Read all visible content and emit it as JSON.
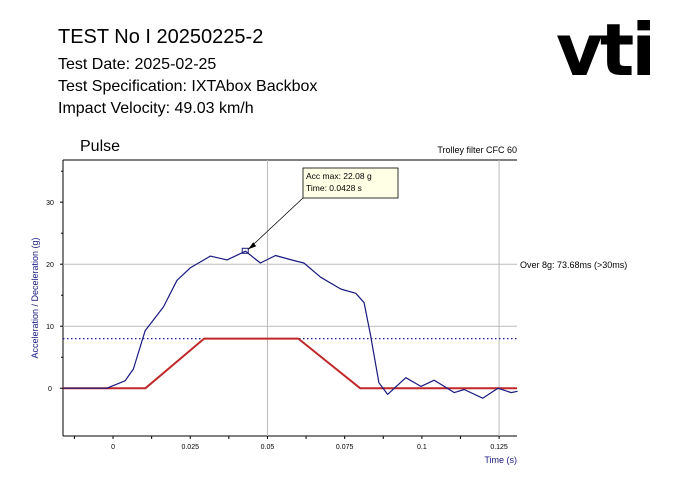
{
  "header": {
    "title": "TEST    No I 20250225-2",
    "test_date": "Test Date: 2025-02-25",
    "test_spec": "Test Specification: IXTAbox Backbox",
    "impact_velocity": "Impact Velocity:  49.03 km/h"
  },
  "logo": "vti",
  "chart_data": {
    "type": "line",
    "title": "Pulse",
    "subtitle": "Trolley filter CFC 60",
    "xlabel": "Time (s)",
    "ylabel": "Acceleration / Deceleration (g)",
    "xlim": [
      -0.0162,
      0.1308
    ],
    "ylim": [
      -7.7,
      36.8
    ],
    "xticks": [
      0,
      0.025,
      0.05,
      0.075,
      0.1,
      0.125
    ],
    "xtick_labels": [
      "0",
      "0.025",
      "0.05",
      "0.075",
      "0.1",
      "0.125"
    ],
    "yticks": [
      0,
      10,
      20,
      30
    ],
    "ytick_labels": [
      "0",
      "10",
      "20",
      "30"
    ],
    "threshold_g": 8,
    "annotation": {
      "line1": "Acc max: 22.08 g",
      "line2": "Time: 0.0428 s",
      "x": 0.0428,
      "y": 22.08
    },
    "side_note": "Over 8g: 73.68ms (>30ms)",
    "series": [
      {
        "name": "Acceleration",
        "color": "#1a1a80",
        "x": [
          -0.0161,
          -0.002,
          0.0039,
          0.0066,
          0.0104,
          0.0163,
          0.0207,
          0.025,
          0.0315,
          0.0369,
          0.0429,
          0.0477,
          0.0526,
          0.0585,
          0.0618,
          0.0672,
          0.0737,
          0.0786,
          0.0813,
          0.0834,
          0.0861,
          0.0889,
          0.0948,
          0.0997,
          0.104,
          0.1105,
          0.1137,
          0.1197,
          0.1246,
          0.1289,
          0.131
        ],
        "y": [
          0,
          0,
          1.2,
          3.1,
          9.3,
          13.1,
          17.4,
          19.4,
          21.3,
          20.7,
          22.1,
          20.2,
          21.4,
          20.6,
          20.2,
          17.9,
          16.0,
          15.3,
          13.8,
          8.5,
          0.9,
          -1.0,
          1.7,
          0.3,
          1.3,
          -0.7,
          -0.2,
          -1.6,
          0,
          -0.7,
          -0.5
        ]
      },
      {
        "name": "Corridor",
        "color": "#c0282a",
        "x": [
          -0.0162,
          0.0105,
          0.0295,
          0.06,
          0.08,
          0.1308
        ],
        "y": [
          0,
          0,
          8,
          8,
          0,
          0
        ]
      }
    ]
  }
}
